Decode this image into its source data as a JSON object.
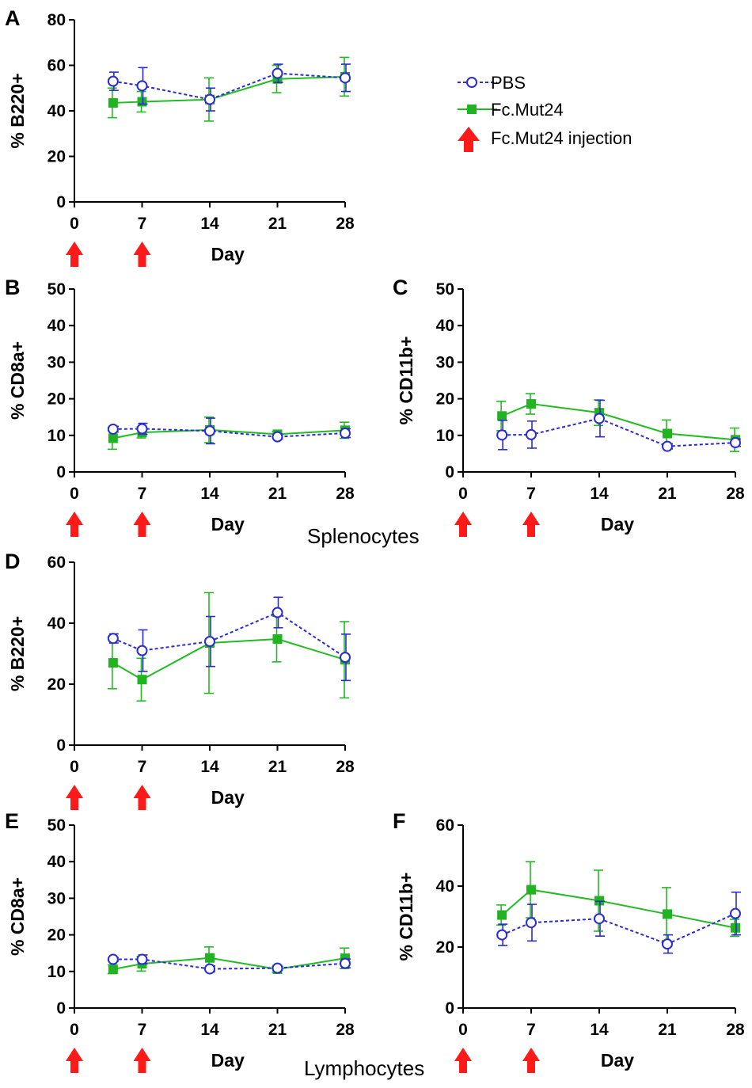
{
  "colors": {
    "pbs": "#2a2ad6",
    "fc": "#22bb22",
    "fc_point": "#22b322",
    "arrow": "#ff1a1a",
    "axis": "#000000"
  },
  "legend": {
    "pbs_label": "PBS",
    "fc_label": "Fc.Mut24",
    "injection_label": "Fc.Mut24 injection"
  },
  "captions": {
    "splenocytes": "Splenocytes",
    "lymphocytes": "Lymphocytes"
  },
  "injection_days": [
    0,
    7
  ],
  "chart_data": [
    {
      "id": "A",
      "type": "line",
      "ylabel": "% B220+",
      "xlabel": "Day",
      "x_ticks": [
        0,
        7,
        14,
        21,
        28
      ],
      "y_ticks": [
        0,
        20,
        40,
        60,
        80
      ],
      "ylim": [
        0,
        80
      ],
      "series": [
        {
          "name": "PBS",
          "x": [
            4,
            7,
            14,
            21,
            28
          ],
          "values": [
            53,
            51,
            45,
            56.5,
            54.5
          ],
          "err": [
            4,
            8,
            5,
            4,
            6
          ]
        },
        {
          "name": "Fc.Mut24",
          "x": [
            4,
            7,
            14,
            21,
            28
          ],
          "values": [
            43.5,
            44,
            45,
            54,
            55
          ],
          "err": [
            6.5,
            4.5,
            9.5,
            6,
            8.5
          ]
        }
      ]
    },
    {
      "id": "B",
      "type": "line",
      "ylabel": "% CD8a+",
      "xlabel": "Day",
      "x_ticks": [
        0,
        7,
        14,
        21,
        28
      ],
      "y_ticks": [
        0,
        10,
        20,
        30,
        40,
        50
      ],
      "ylim": [
        0,
        50
      ],
      "series": [
        {
          "name": "PBS",
          "x": [
            4,
            7,
            14,
            21,
            28
          ],
          "values": [
            11.7,
            11.8,
            11.2,
            9.6,
            10.6
          ],
          "err": [
            0.8,
            1.5,
            3.5,
            0.6,
            1.2
          ]
        },
        {
          "name": "Fc.Mut24",
          "x": [
            4,
            7,
            14,
            21,
            28
          ],
          "values": [
            9.2,
            10.8,
            11.5,
            10.3,
            11.4
          ],
          "err": [
            3,
            1.5,
            3.5,
            0.8,
            2.2
          ]
        }
      ]
    },
    {
      "id": "C",
      "type": "line",
      "ylabel": "% CD11b+",
      "xlabel": "Day",
      "x_ticks": [
        0,
        7,
        14,
        21,
        28
      ],
      "y_ticks": [
        0,
        10,
        20,
        30,
        40,
        50
      ],
      "ylim": [
        0,
        50
      ],
      "series": [
        {
          "name": "PBS",
          "x": [
            4,
            7,
            14,
            21,
            28
          ],
          "values": [
            10.1,
            10.2,
            14.6,
            7,
            8
          ],
          "err": [
            4,
            3.7,
            5,
            0.7,
            1
          ]
        },
        {
          "name": "Fc.Mut24",
          "x": [
            4,
            7,
            14,
            21,
            28
          ],
          "values": [
            15.3,
            18.6,
            16.2,
            10.5,
            8.8
          ],
          "err": [
            4,
            2.8,
            3.5,
            3.7,
            3.2
          ]
        }
      ]
    },
    {
      "id": "D",
      "type": "line",
      "ylabel": "% B220+",
      "xlabel": "Day",
      "x_ticks": [
        0,
        7,
        14,
        21,
        28
      ],
      "y_ticks": [
        0,
        20,
        40,
        60
      ],
      "ylim": [
        0,
        60
      ],
      "series": [
        {
          "name": "PBS",
          "x": [
            4,
            7,
            14,
            21,
            28
          ],
          "values": [
            35,
            31,
            34,
            43.5,
            28.8
          ],
          "err": [
            1.5,
            6.8,
            8.2,
            5,
            7.6
          ]
        },
        {
          "name": "Fc.Mut24",
          "x": [
            4,
            7,
            14,
            21,
            28
          ],
          "values": [
            27,
            21.5,
            33.5,
            34.8,
            28
          ],
          "err": [
            8.5,
            7,
            16.5,
            7.5,
            12.5
          ]
        }
      ]
    },
    {
      "id": "E",
      "type": "line",
      "ylabel": "% CD8a+",
      "xlabel": "Day",
      "x_ticks": [
        0,
        7,
        14,
        21,
        28
      ],
      "y_ticks": [
        0,
        10,
        20,
        30,
        40,
        50
      ],
      "ylim": [
        0,
        50
      ],
      "series": [
        {
          "name": "PBS",
          "x": [
            4,
            7,
            14,
            21,
            28
          ],
          "values": [
            13.3,
            13.3,
            10.7,
            10.9,
            12.2
          ],
          "err": [
            0.5,
            1.2,
            0.8,
            0.5,
            1.2
          ]
        },
        {
          "name": "Fc.Mut24",
          "x": [
            4,
            7,
            14,
            21,
            28
          ],
          "values": [
            10.6,
            12.1,
            13.7,
            10.6,
            13.6
          ],
          "err": [
            1.2,
            2,
            3,
            0.8,
            2.8
          ]
        }
      ]
    },
    {
      "id": "F",
      "type": "line",
      "ylabel": "% CD11b+",
      "xlabel": "Day",
      "x_ticks": [
        0,
        7,
        14,
        21,
        28
      ],
      "y_ticks": [
        0,
        20,
        40,
        60
      ],
      "ylim": [
        0,
        60
      ],
      "series": [
        {
          "name": "PBS",
          "x": [
            4,
            7,
            14,
            21,
            28
          ],
          "values": [
            24,
            28,
            29.3,
            21,
            31
          ],
          "err": [
            3.5,
            6,
            5.7,
            3,
            7
          ]
        },
        {
          "name": "Fc.Mut24",
          "x": [
            4,
            7,
            14,
            21,
            28
          ],
          "values": [
            30.5,
            38.8,
            35.2,
            30.8,
            26.3
          ],
          "err": [
            3.3,
            9.2,
            10,
            8.7,
            2.8
          ]
        }
      ]
    }
  ]
}
